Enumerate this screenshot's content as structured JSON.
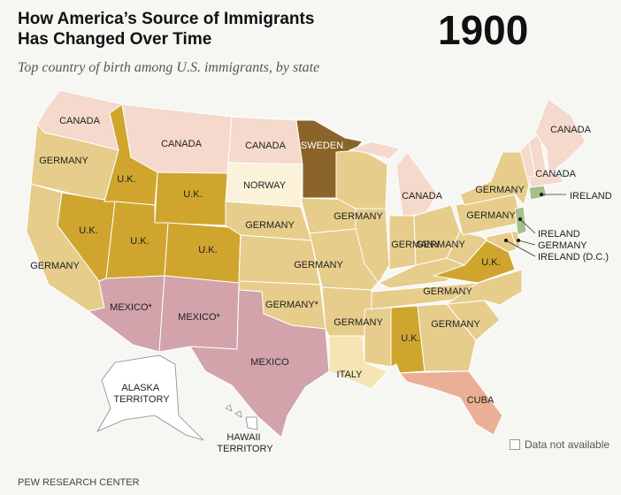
{
  "header": {
    "title_line1": "How America’s Source of Immigrants",
    "title_line2": "Has Changed Over Time",
    "year": "1900",
    "subtitle": "Top country of birth among U.S. immigrants, by state"
  },
  "colors": {
    "Germany": "#e6cd8c",
    "Canada": "#f5d9cc",
    "U.K.": "#cfa52e",
    "Sweden": "#8a6428",
    "Norway": "#fbf2da",
    "Mexico": "#d2a3aa",
    "Ireland": "#a7c08a",
    "Italy": "#f5e4b4",
    "Cuba": "#eaaf94",
    "Data not available": "#ffffff"
  },
  "labels": {
    "wa": "CANADA",
    "mt": "CANADA",
    "nd": "CANADA",
    "or": "GERMANY",
    "id": "U.K.",
    "wy": "U.K.",
    "sd": "NORWAY",
    "mn": "SWEDEN",
    "mi": "CANADA",
    "nh": "CANADA",
    "vt": "CANADA",
    "ny": "GERMANY",
    "ct": "IRELAND",
    "pa": "GERMANY",
    "nv": "U.K.",
    "ut": "U.K.",
    "co": "U.K.",
    "ne": "GERMANY",
    "wi": "GERMANY",
    "ks": "GERMANY",
    "oh": "GERMANY",
    "in": "GERMANY",
    "ca": "GERMANY",
    "va": "U.K.",
    "nj": "IRELAND",
    "de": "GERMANY",
    "dc": "IRELAND (D.C.)",
    "nc": "GERMANY",
    "az": "MEXICO*",
    "nm": "MEXICO*",
    "ok": "GERMANY*",
    "ar": "GERMANY",
    "al": "U.K.",
    "ga": "GERMANY",
    "tx": "MEXICO",
    "la": "ITALY",
    "fl": "CUBA",
    "ak": "ALASKA TERRITORY",
    "hi": "HAWAII TERRITORY"
  },
  "legend": {
    "label": "Data not available"
  },
  "source": "PEW RESEARCH CENTER"
}
